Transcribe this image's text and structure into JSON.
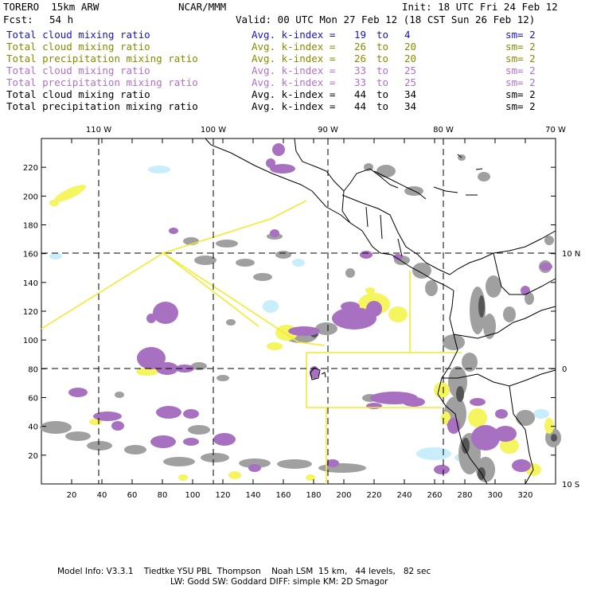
{
  "header": {
    "model": "TORERO  15km ARW",
    "org": "NCAR/MMM",
    "init": "Init: 18 UTC Fri 24 Feb 12",
    "fcst_label": "Fcst:",
    "fcst_value": "54 h",
    "valid": "Valid: 00 UTC Mon 27 Feb 12 (18 CST Sun 26 Feb 12)"
  },
  "layers": [
    {
      "name": "Total cloud mixing ratio",
      "index_label": "Avg. k-index =",
      "from": "19",
      "to_word": "to",
      "to": "4",
      "sm": "sm= 2",
      "color": "#1515c8"
    },
    {
      "name": "Total cloud mixing ratio",
      "index_label": "Avg. k-index =",
      "from": "26",
      "to_word": "to",
      "to": "20",
      "sm": "sm= 2",
      "color": "#8a8a00"
    },
    {
      "name": "Total precipitation mixing ratio",
      "index_label": "Avg. k-index =",
      "from": "26",
      "to_word": "to",
      "to": "20",
      "sm": "sm= 2",
      "color": "#8a8a00"
    },
    {
      "name": "Total cloud mixing ratio",
      "index_label": "Avg. k-index =",
      "from": "33",
      "to_word": "to",
      "to": "25",
      "sm": "sm= 2",
      "color": "#b070c8"
    },
    {
      "name": "Total precipitation mixing ratio",
      "index_label": "Avg. k-index =",
      "from": "33",
      "to_word": "to",
      "to": "25",
      "sm": "sm= 2",
      "color": "#b070c8"
    },
    {
      "name": "Total cloud mixing ratio",
      "index_label": "Avg. k-index =",
      "from": "44",
      "to_word": "to",
      "to": "34",
      "sm": "sm= 2",
      "color": "#000000"
    },
    {
      "name": "Total precipitation mixing ratio",
      "index_label": "Avg. k-index =",
      "from": "44",
      "to_word": "to",
      "to": "34",
      "sm": "sm= 2",
      "color": "#000000"
    }
  ],
  "axes": {
    "top_lon_labels": [
      "110 W",
      "100 W",
      "90 W",
      "80 W",
      "70 W"
    ],
    "right_lat_labels": [
      "10 N",
      "0",
      "10 S"
    ],
    "left_ticks": [
      "220",
      "200",
      "180",
      "160",
      "140",
      "120",
      "100",
      "80",
      "60",
      "40",
      "20"
    ],
    "bottom_ticks": [
      "20",
      "40",
      "60",
      "80",
      "100",
      "120",
      "140",
      "160",
      "180",
      "200",
      "220",
      "240",
      "260",
      "280",
      "300",
      "320"
    ]
  },
  "footer": {
    "line1": "Model Info: V3.3.1    Tiedtke YSU PBL  Thompson    Noah LSM  15 km,   44 levels,   82 sec",
    "line2": "LW: Godd SW: Goddard DIFF: simple KM: 2D Smagor"
  },
  "colors": {
    "cloud_light": "#c7eefa",
    "grey": "#9a9a9a",
    "grey_dark": "#555555",
    "purple": "#a870c0",
    "yellow": "#f5f560",
    "yellow_line": "#f2ea30",
    "coast": "#000000"
  }
}
